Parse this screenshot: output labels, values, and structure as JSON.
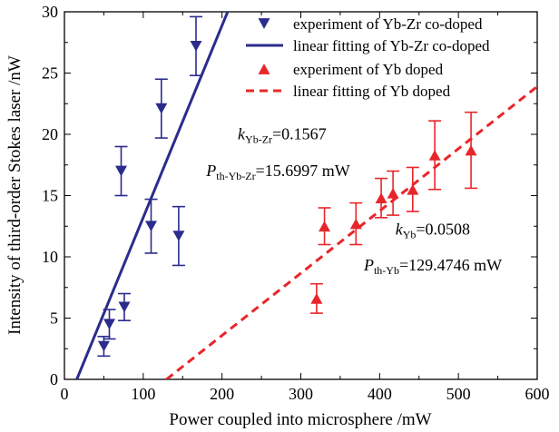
{
  "chart_data": {
    "type": "scatter",
    "title": "",
    "xlabel": "Power coupled into microsphere /mW",
    "ylabel": "Intensity of third-order Stokes laser /nW",
    "xlim": [
      0,
      600
    ],
    "ylim": [
      0,
      30
    ],
    "xticks": [
      0,
      100,
      200,
      300,
      400,
      500,
      600
    ],
    "yticks": [
      0,
      5,
      10,
      15,
      20,
      25,
      30
    ],
    "legend_position": "top-right",
    "series": [
      {
        "name": "experiment of Yb-Zr co-doped",
        "kind": "points",
        "marker": "triangle-down",
        "color": "#2b2c8c",
        "points": [
          {
            "x": 50,
            "y": 2.7,
            "err": 0.8
          },
          {
            "x": 57,
            "y": 4.5,
            "err": 1.2
          },
          {
            "x": 72,
            "y": 17.0,
            "err": 2.0
          },
          {
            "x": 76,
            "y": 5.9,
            "err": 1.1
          },
          {
            "x": 110,
            "y": 12.5,
            "err": 2.2
          },
          {
            "x": 123,
            "y": 22.1,
            "err": 2.4
          },
          {
            "x": 145,
            "y": 11.7,
            "err": 2.4
          },
          {
            "x": 167,
            "y": 27.2,
            "err": 2.4
          }
        ]
      },
      {
        "name": "linear fitting of Yb-Zr co-doped",
        "kind": "line",
        "style": "solid",
        "color": "#2b2c8c",
        "slope": 0.1567,
        "x_intercept": 15.6997
      },
      {
        "name": "experiment of Yb doped",
        "kind": "points",
        "marker": "triangle-up",
        "color": "#e8262a",
        "points": [
          {
            "x": 320,
            "y": 6.6,
            "err": 1.2
          },
          {
            "x": 330,
            "y": 12.5,
            "err": 1.5
          },
          {
            "x": 370,
            "y": 12.7,
            "err": 1.7
          },
          {
            "x": 402,
            "y": 14.8,
            "err": 1.6
          },
          {
            "x": 417,
            "y": 15.2,
            "err": 1.8
          },
          {
            "x": 442,
            "y": 15.5,
            "err": 1.8
          },
          {
            "x": 470,
            "y": 18.3,
            "err": 2.8
          },
          {
            "x": 516,
            "y": 18.7,
            "err": 3.1
          }
        ]
      },
      {
        "name": "linear fitting of Yb doped",
        "kind": "line",
        "style": "dashed",
        "color": "#e8262a",
        "slope": 0.0508,
        "x_intercept": 129.4746
      }
    ],
    "annotations": [
      {
        "key": "k_yb_zr",
        "main": "k",
        "sub": "Yb-Zr",
        "value": "=0.1567",
        "color": "#000000",
        "anchor_x": 220,
        "anchor_y": 19.6
      },
      {
        "key": "p_yb_zr",
        "main": "P",
        "sub": "th-Yb-Zr",
        "value": "=15.6997 mW",
        "color": "#000000",
        "anchor_x": 180,
        "anchor_y": 16.6
      },
      {
        "key": "k_yb",
        "main": "k",
        "sub": "Yb",
        "value": "=0.0508",
        "color": "#000000",
        "anchor_x": 420,
        "anchor_y": 11.8
      },
      {
        "key": "p_yb",
        "main": "P",
        "sub": "th-Yb",
        "value": "=129.4746 mW",
        "color": "#000000",
        "anchor_x": 380,
        "anchor_y": 8.9
      }
    ]
  }
}
